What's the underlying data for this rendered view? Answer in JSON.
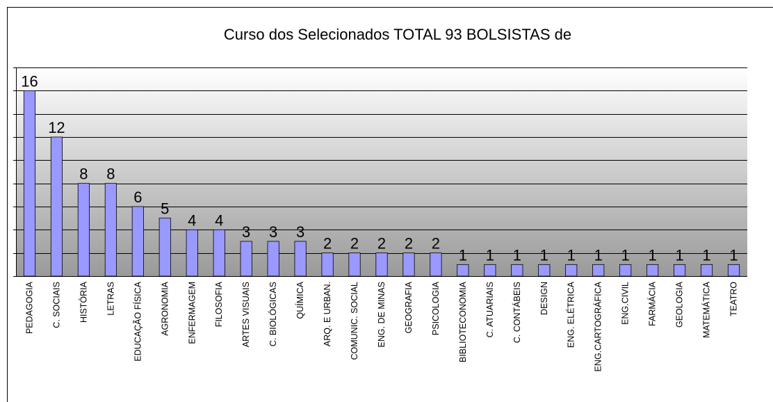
{
  "chart_data": {
    "type": "bar",
    "title": "Curso dos Selecionados TOTAL 93 BOLSISTAS de",
    "categories": [
      "PEDAGOGIA",
      "C. SOCIAIS",
      "HISTÓRIA",
      "LETRAS",
      "EDUCAÇÃO FÍSICA",
      "AGRONOMIA",
      "ENFERMAGEM",
      "FILOSOFIA",
      "ARTES VISUAIS",
      "C. BIOLÓGICAS",
      "QUÍMICA",
      "ARQ. E URBAN.",
      "COMUNIC. SOCIAL",
      "ENG. DE MINAS",
      "GEOGRAFIA",
      "PSICOLOGIA",
      "BIBLIOTECONOMIA",
      "C. ATUARIAIS",
      "C. CONTÁBEIS",
      "DESIGN",
      "ENG. ELÉTRICA",
      "ENG.CARTOGRÁFICA",
      "ENG.CIVIL",
      "FARMÁCIA",
      "GEOLOGIA",
      "MATEMÁTICA",
      "TEATRO"
    ],
    "values": [
      16,
      12,
      8,
      8,
      6,
      5,
      4,
      4,
      3,
      3,
      3,
      2,
      2,
      2,
      2,
      2,
      1,
      1,
      1,
      1,
      1,
      1,
      1,
      1,
      1,
      1,
      1
    ],
    "color": "#9999ff",
    "ylim": [
      0,
      18
    ],
    "yticks": [
      0,
      2,
      4,
      6,
      8,
      10,
      12,
      14,
      16,
      18
    ],
    "grid": true
  }
}
